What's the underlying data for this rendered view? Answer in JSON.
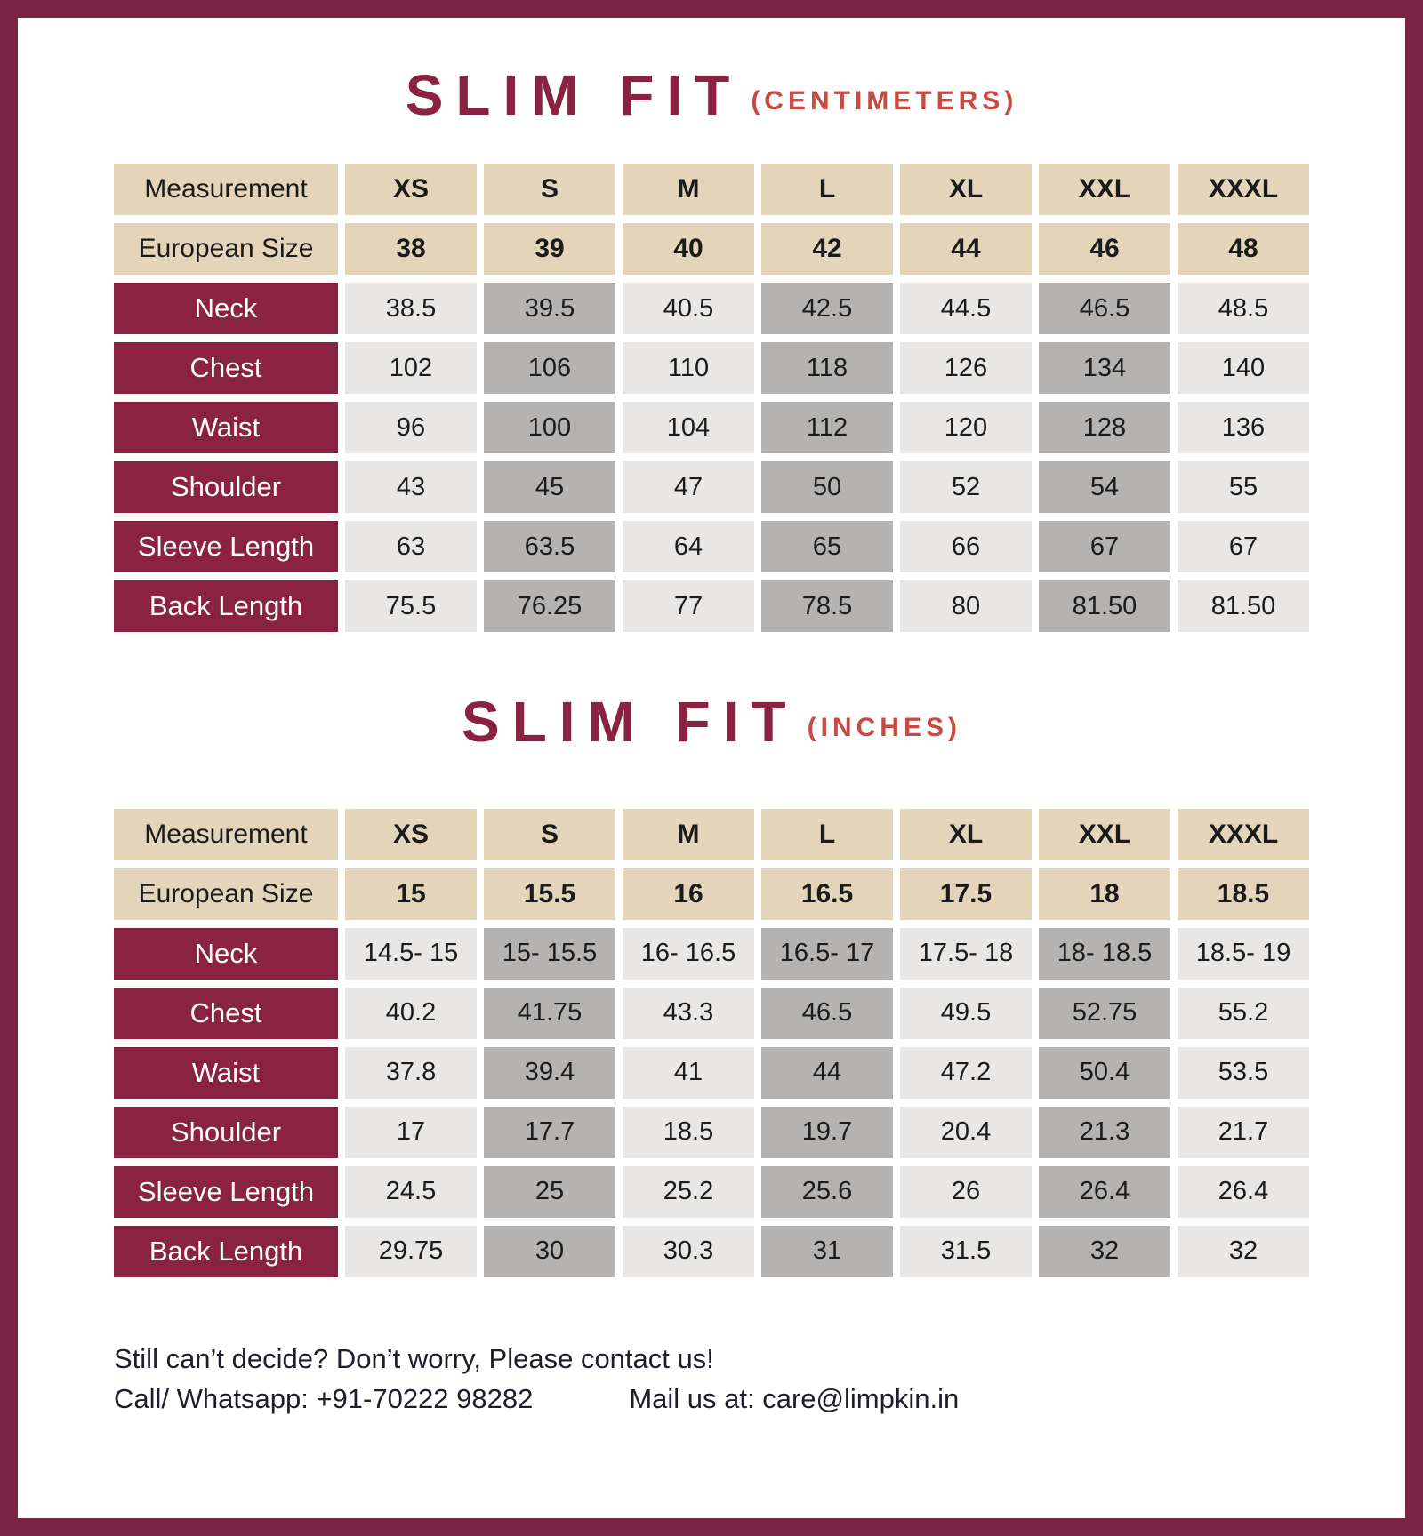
{
  "colors": {
    "brand_maroon": "#8A2342",
    "frame_border": "#7C2443",
    "accent_red": "#C84B41",
    "header_beige": "#E4D5BA",
    "cell_light_gray": "#E8E7E5",
    "cell_dark_gray": "#B5B3B1"
  },
  "tables": [
    {
      "title": "SLIM FIT",
      "unit": "(CENTIMETERS)",
      "header": [
        "Measurement",
        "XS",
        "S",
        "M",
        "L",
        "XL",
        "XXL",
        "XXXL"
      ],
      "rows": [
        {
          "label": "European Size",
          "type": "euro",
          "values": [
            "38",
            "39",
            "40",
            "42",
            "44",
            "46",
            "48"
          ]
        },
        {
          "label": "Neck",
          "type": "data",
          "values": [
            "38.5",
            "39.5",
            "40.5",
            "42.5",
            "44.5",
            "46.5",
            "48.5"
          ]
        },
        {
          "label": "Chest",
          "type": "data",
          "values": [
            "102",
            "106",
            "110",
            "118",
            "126",
            "134",
            "140"
          ]
        },
        {
          "label": "Waist",
          "type": "data",
          "values": [
            "96",
            "100",
            "104",
            "112",
            "120",
            "128",
            "136"
          ]
        },
        {
          "label": "Shoulder",
          "type": "data",
          "values": [
            "43",
            "45",
            "47",
            "50",
            "52",
            "54",
            "55"
          ]
        },
        {
          "label": "Sleeve Length",
          "type": "data",
          "values": [
            "63",
            "63.5",
            "64",
            "65",
            "66",
            "67",
            "67"
          ]
        },
        {
          "label": "Back Length",
          "type": "data",
          "values": [
            "75.5",
            "76.25",
            "77",
            "78.5",
            "80",
            "81.50",
            "81.50"
          ]
        }
      ]
    },
    {
      "title": "SLIM FIT",
      "unit": "(INCHES)",
      "header": [
        "Measurement",
        "XS",
        "S",
        "M",
        "L",
        "XL",
        "XXL",
        "XXXL"
      ],
      "rows": [
        {
          "label": "European Size",
          "type": "euro",
          "values": [
            "15",
            "15.5",
            "16",
            "16.5",
            "17.5",
            "18",
            "18.5"
          ]
        },
        {
          "label": "Neck",
          "type": "data",
          "values": [
            "14.5- 15",
            "15- 15.5",
            "16- 16.5",
            "16.5- 17",
            "17.5- 18",
            "18- 18.5",
            "18.5- 19"
          ]
        },
        {
          "label": "Chest",
          "type": "data",
          "values": [
            "40.2",
            "41.75",
            "43.3",
            "46.5",
            "49.5",
            "52.75",
            "55.2"
          ]
        },
        {
          "label": "Waist",
          "type": "data",
          "values": [
            "37.8",
            "39.4",
            "41",
            "44",
            "47.2",
            "50.4",
            "53.5"
          ]
        },
        {
          "label": "Shoulder",
          "type": "data",
          "values": [
            "17",
            "17.7",
            "18.5",
            "19.7",
            "20.4",
            "21.3",
            "21.7"
          ]
        },
        {
          "label": "Sleeve Length",
          "type": "data",
          "values": [
            "24.5",
            "25",
            "25.2",
            "25.6",
            "26",
            "26.4",
            "26.4"
          ]
        },
        {
          "label": "Back Length",
          "type": "data",
          "values": [
            "29.75",
            "30",
            "30.3",
            "31",
            "31.5",
            "32",
            "32"
          ]
        }
      ]
    }
  ],
  "footer": {
    "line1": "Still can’t decide? Don’t worry, Please contact us!",
    "contact_call": "Call/ Whatsapp: +91-70222 98282",
    "contact_mail": "Mail us at: care@limpkin.in"
  }
}
